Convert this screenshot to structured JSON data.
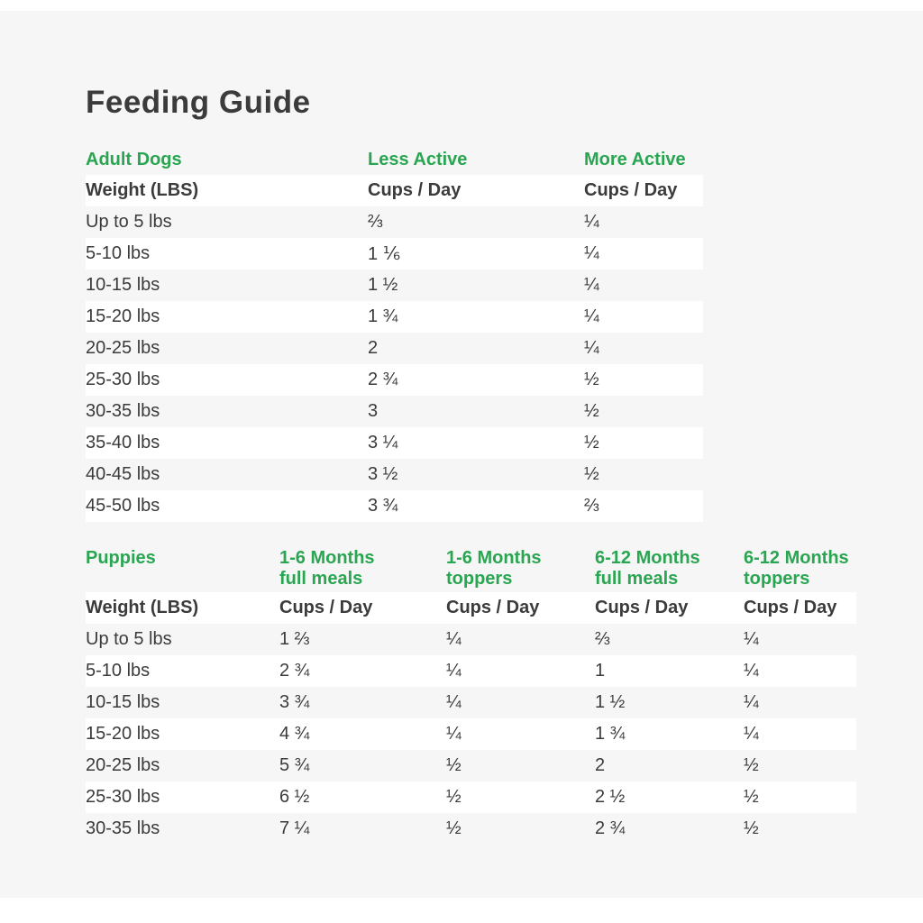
{
  "page": {
    "title": "Feeding Guide"
  },
  "colors": {
    "accent_green": "#2aa551",
    "text_dark": "#3b3b3b",
    "panel_background": "#f6f6f7",
    "row_stripe": "#ffffff"
  },
  "adult_table": {
    "section_label": "Adult Dogs",
    "col_headers": [
      "Less Active",
      "More Active"
    ],
    "weight_header": "Weight (LBS)",
    "cups_header": "Cups / Day",
    "rows": [
      {
        "weight": "Up to 5 lbs",
        "less_active": "⅔",
        "more_active": "¼"
      },
      {
        "weight": "5-10 lbs",
        "less_active": "1 ⅙",
        "more_active": "¼"
      },
      {
        "weight": "10-15 lbs",
        "less_active": "1 ½",
        "more_active": "¼"
      },
      {
        "weight": "15-20 lbs",
        "less_active": "1 ¾",
        "more_active": "¼"
      },
      {
        "weight": "20-25 lbs",
        "less_active": "2",
        "more_active": "¼"
      },
      {
        "weight": "25-30 lbs",
        "less_active": "2 ¾",
        "more_active": "½"
      },
      {
        "weight": "30-35 lbs",
        "less_active": "3",
        "more_active": "½"
      },
      {
        "weight": "35-40 lbs",
        "less_active": "3 ¼",
        "more_active": "½"
      },
      {
        "weight": "40-45 lbs",
        "less_active": "3 ½",
        "more_active": "½"
      },
      {
        "weight": "45-50 lbs",
        "less_active": "3 ¾",
        "more_active": "⅔"
      }
    ]
  },
  "puppy_table": {
    "section_label": "Puppies",
    "col_headers": [
      {
        "line1": "1-6 Months",
        "line2": "full meals"
      },
      {
        "line1": "1-6 Months",
        "line2": "toppers"
      },
      {
        "line1": "6-12 Months",
        "line2": "full meals"
      },
      {
        "line1": "6-12 Months",
        "line2": "toppers"
      }
    ],
    "weight_header": "Weight (LBS)",
    "cups_header": "Cups / Day",
    "rows": [
      {
        "weight": "Up to 5 lbs",
        "m16_full": "1 ⅔",
        "m16_toppers": "¼",
        "m612_full": "⅔",
        "m612_toppers": "¼"
      },
      {
        "weight": "5-10 lbs",
        "m16_full": "2 ¾",
        "m16_toppers": "¼",
        "m612_full": "1",
        "m612_toppers": "¼"
      },
      {
        "weight": "10-15 lbs",
        "m16_full": "3 ¾",
        "m16_toppers": "¼",
        "m612_full": "1 ½",
        "m612_toppers": "¼"
      },
      {
        "weight": "15-20 lbs",
        "m16_full": "4 ¾",
        "m16_toppers": "¼",
        "m612_full": "1 ¾",
        "m612_toppers": "¼"
      },
      {
        "weight": "20-25 lbs",
        "m16_full": "5 ¾",
        "m16_toppers": "½",
        "m612_full": "2",
        "m612_toppers": "½"
      },
      {
        "weight": "25-30 lbs",
        "m16_full": "6 ½",
        "m16_toppers": "½",
        "m612_full": "2 ½",
        "m612_toppers": "½"
      },
      {
        "weight": "30-35 lbs",
        "m16_full": "7 ¼",
        "m16_toppers": "½",
        "m612_full": "2 ¾",
        "m612_toppers": "½"
      }
    ]
  }
}
